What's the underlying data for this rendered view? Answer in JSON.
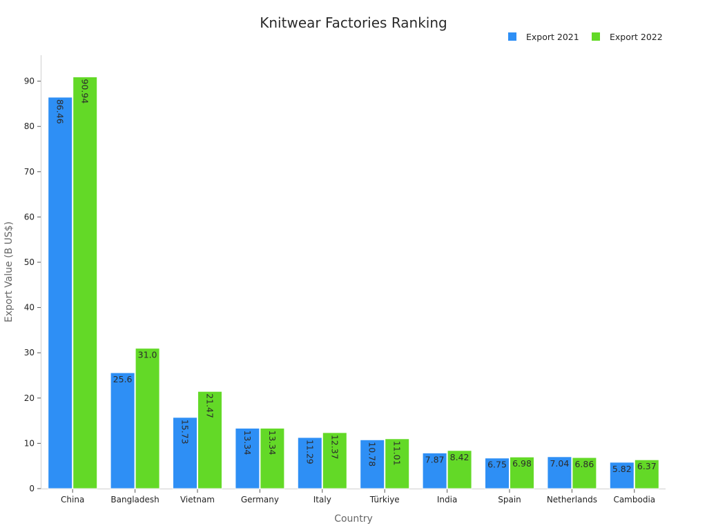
{
  "chart_data": {
    "type": "bar",
    "title": "Knitwear Factories Ranking",
    "xlabel": "Country",
    "ylabel": "Export Value (B US$)",
    "categories": [
      "China",
      "Bangladesh",
      "Vietnam",
      "Germany",
      "Italy",
      "Türkiye",
      "India",
      "Spain",
      "Netherlands",
      "Cambodia"
    ],
    "series": [
      {
        "name": "Export 2021",
        "color": "#2e8ff5",
        "values": [
          86.46,
          25.6,
          15.73,
          13.34,
          11.29,
          10.78,
          7.87,
          6.75,
          7.04,
          5.82
        ],
        "labels": [
          "86.46",
          "25.6",
          "15.73",
          "13.34",
          "11.29",
          "10.78",
          "7.87",
          "6.75",
          "7.04",
          "5.82"
        ]
      },
      {
        "name": "Export 2022",
        "color": "#63d927",
        "values": [
          90.94,
          31.0,
          21.47,
          13.34,
          12.37,
          11.01,
          8.42,
          6.98,
          6.86,
          6.37
        ],
        "labels": [
          "90.94",
          "31.0",
          "21.47",
          "13.34",
          "12.37",
          "11.01",
          "8.42",
          "6.98",
          "6.86",
          "6.37"
        ]
      }
    ],
    "ylim": [
      0,
      96
    ],
    "yticks": [
      0,
      10,
      20,
      30,
      40,
      50,
      60,
      70,
      80,
      90
    ],
    "grid": false,
    "legend_position": "top-right"
  }
}
